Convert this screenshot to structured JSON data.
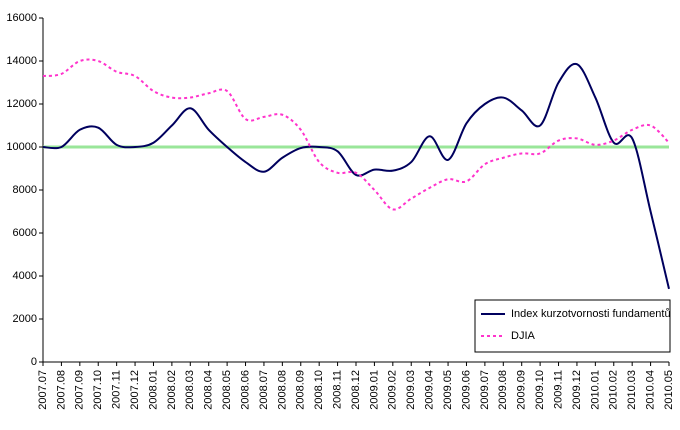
{
  "chart_data": {
    "type": "line",
    "categories": [
      "2007.07",
      "2007.08",
      "2007.09",
      "2007.10",
      "2007.11",
      "2007.12",
      "2008.01",
      "2008.02",
      "2008.03",
      "2008.04",
      "2008.05",
      "2008.06",
      "2008.07",
      "2008.08",
      "2008.09",
      "2008.10",
      "2008.11",
      "2008.12",
      "2009.01",
      "2009.02",
      "2009.03",
      "2009.04",
      "2009.05",
      "2009.06",
      "2009.07",
      "2009.08",
      "2009.09",
      "2009.10",
      "2009.11",
      "2009.12",
      "2010.01",
      "2010.02",
      "2010.03",
      "2010.04",
      "2010.05"
    ],
    "series": [
      {
        "name": "Index kurzotvornosti fundamentů",
        "color": "#00005e",
        "dash": false,
        "values": [
          10000,
          10000,
          10800,
          10900,
          10100,
          10000,
          10200,
          11000,
          11800,
          10800,
          10000,
          9300,
          8850,
          9500,
          9950,
          10000,
          9800,
          8700,
          8950,
          8900,
          9300,
          10500,
          9400,
          11100,
          12000,
          12300,
          11700,
          11000,
          13000,
          13850,
          12300,
          10200,
          10400,
          7000,
          3400
        ]
      },
      {
        "name": "DJIA",
        "color": "#ff33cc",
        "dash": true,
        "values": [
          13300,
          13400,
          14000,
          14000,
          13500,
          13300,
          12600,
          12300,
          12300,
          12500,
          12600,
          11300,
          11400,
          11500,
          10800,
          9300,
          8800,
          8800,
          8000,
          7100,
          7600,
          8100,
          8500,
          8400,
          9200,
          9500,
          9700,
          9700,
          10300,
          10400,
          10100,
          10300,
          10800,
          11000,
          10200
        ]
      }
    ],
    "reference_line": {
      "value": 10000,
      "color": "#99e699"
    },
    "ylim": [
      0,
      16000
    ],
    "yticks": [
      0,
      2000,
      4000,
      6000,
      8000,
      10000,
      12000,
      14000,
      16000
    ],
    "grid": false,
    "legend": "lower right"
  }
}
